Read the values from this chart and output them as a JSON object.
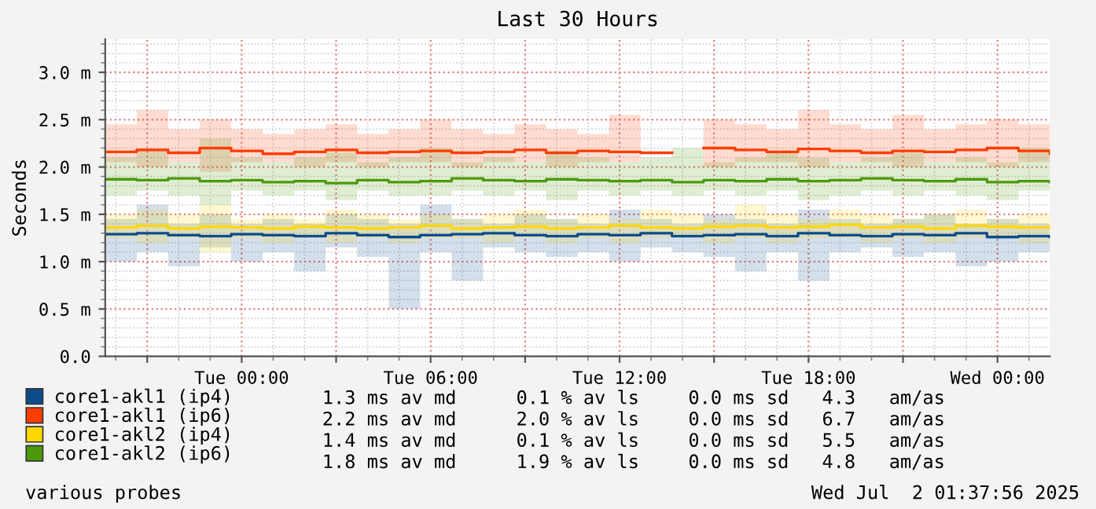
{
  "chart_data": {
    "type": "step",
    "title": "Last 30 Hours",
    "ylabel": "Seconds",
    "x": [
      "2025-06-30T19:40",
      "2025-06-30T20:40",
      "2025-06-30T21:40",
      "2025-06-30T22:40",
      "2025-06-30T23:40",
      "2025-07-01T00:40",
      "2025-07-01T01:40",
      "2025-07-01T02:40",
      "2025-07-01T03:40",
      "2025-07-01T04:40",
      "2025-07-01T05:40",
      "2025-07-01T06:40",
      "2025-07-01T07:40",
      "2025-07-01T08:40",
      "2025-07-01T09:40",
      "2025-07-01T10:40",
      "2025-07-01T11:40",
      "2025-07-01T12:40",
      "2025-07-01T13:40",
      "2025-07-01T14:40",
      "2025-07-01T15:40",
      "2025-07-01T16:40",
      "2025-07-01T17:40",
      "2025-07-01T18:40",
      "2025-07-01T19:40",
      "2025-07-01T20:40",
      "2025-07-01T21:40",
      "2025-07-01T22:40",
      "2025-07-01T23:40",
      "2025-07-02T00:40",
      "2025-07-02T01:40"
    ],
    "series": [
      {
        "name": "core1-akl1 (ip4)",
        "color": "#0c4c8c",
        "values": [
          1.29,
          1.3,
          1.28,
          1.27,
          1.29,
          1.28,
          1.27,
          1.3,
          1.28,
          1.26,
          1.28,
          1.29,
          1.3,
          1.28,
          1.27,
          1.29,
          1.28,
          1.3,
          1.27,
          1.28,
          1.29,
          1.27,
          1.3,
          1.28,
          1.27,
          1.29,
          1.28,
          1.3,
          1.26,
          1.27,
          1.26
        ],
        "lower": [
          1.0,
          1.1,
          0.95,
          1.15,
          1.0,
          1.1,
          0.9,
          1.15,
          1.05,
          0.5,
          1.1,
          0.8,
          1.15,
          1.1,
          1.05,
          1.1,
          1.0,
          1.15,
          1.1,
          1.05,
          0.9,
          1.1,
          0.8,
          1.1,
          1.15,
          1.05,
          1.1,
          0.95,
          1.0,
          1.1,
          1.15
        ],
        "upper": [
          1.45,
          1.6,
          1.4,
          1.5,
          1.4,
          1.45,
          1.4,
          1.5,
          1.45,
          1.4,
          1.6,
          1.45,
          1.4,
          1.5,
          1.45,
          1.4,
          1.55,
          1.45,
          1.4,
          1.5,
          1.45,
          1.4,
          1.55,
          1.45,
          1.4,
          1.45,
          1.5,
          1.4,
          1.45,
          1.4,
          1.45
        ]
      },
      {
        "name": "core1-akl1 (ip6)",
        "color": "#ff3d00",
        "values": [
          2.16,
          2.18,
          2.15,
          2.2,
          2.17,
          2.14,
          2.16,
          2.18,
          2.15,
          2.16,
          2.17,
          2.15,
          2.16,
          2.18,
          2.15,
          2.17,
          2.16,
          2.15,
          null,
          2.2,
          2.18,
          2.16,
          2.19,
          2.17,
          2.15,
          2.17,
          2.16,
          2.18,
          2.2,
          2.17,
          2.14
        ],
        "lower": [
          2.05,
          2.0,
          2.05,
          1.95,
          2.05,
          2.05,
          2.0,
          2.05,
          2.0,
          2.05,
          2.05,
          2.0,
          2.05,
          2.05,
          2.0,
          2.05,
          2.05,
          2.0,
          null,
          2.0,
          2.05,
          2.05,
          2.0,
          2.05,
          2.05,
          2.0,
          2.05,
          2.05,
          2.0,
          2.05,
          2.05
        ],
        "upper": [
          2.45,
          2.6,
          2.4,
          2.5,
          2.4,
          2.35,
          2.4,
          2.45,
          2.35,
          2.4,
          2.5,
          2.4,
          2.35,
          2.45,
          2.4,
          2.35,
          2.55,
          2.4,
          null,
          2.5,
          2.45,
          2.4,
          2.6,
          2.45,
          2.4,
          2.55,
          2.4,
          2.45,
          2.5,
          2.45,
          2.35
        ]
      },
      {
        "name": "core1-akl2 (ip4)",
        "color": "#ffd700",
        "values": [
          1.36,
          1.38,
          1.35,
          1.37,
          1.36,
          1.35,
          1.37,
          1.36,
          1.35,
          1.36,
          1.38,
          1.35,
          1.36,
          1.37,
          1.35,
          1.36,
          1.38,
          1.36,
          1.35,
          1.37,
          1.38,
          1.36,
          1.37,
          1.39,
          1.36,
          1.37,
          1.35,
          1.38,
          1.37,
          1.36,
          1.37
        ],
        "lower": [
          1.25,
          1.2,
          1.25,
          1.1,
          1.25,
          1.2,
          1.25,
          1.2,
          1.25,
          1.2,
          1.25,
          1.25,
          1.2,
          1.25,
          1.2,
          1.25,
          1.2,
          1.25,
          1.25,
          1.2,
          1.25,
          1.2,
          1.25,
          1.25,
          1.2,
          1.25,
          1.2,
          1.25,
          1.25,
          1.2,
          1.25
        ],
        "upper": [
          1.5,
          1.55,
          1.5,
          1.6,
          1.45,
          1.5,
          1.45,
          1.55,
          1.5,
          1.45,
          1.5,
          1.45,
          1.5,
          1.55,
          1.45,
          1.5,
          1.45,
          1.55,
          1.5,
          1.45,
          1.6,
          1.5,
          1.45,
          1.55,
          1.5,
          1.45,
          1.5,
          1.55,
          1.45,
          1.5,
          1.45
        ]
      },
      {
        "name": "core1-akl2 (ip6)",
        "color": "#4c9a0a",
        "values": [
          1.87,
          1.86,
          1.88,
          1.85,
          1.86,
          1.84,
          1.85,
          1.83,
          1.86,
          1.84,
          1.85,
          1.88,
          1.86,
          1.85,
          1.87,
          1.86,
          1.85,
          1.86,
          1.84,
          1.86,
          1.85,
          1.87,
          1.85,
          1.86,
          1.88,
          1.86,
          1.85,
          1.87,
          1.84,
          1.85,
          1.84
        ],
        "lower": [
          1.7,
          1.75,
          1.7,
          1.6,
          1.75,
          1.7,
          1.75,
          1.65,
          1.75,
          1.7,
          1.7,
          1.75,
          1.7,
          1.75,
          1.65,
          1.75,
          1.7,
          1.75,
          1.7,
          1.75,
          1.7,
          1.75,
          1.65,
          1.7,
          1.75,
          1.7,
          1.75,
          1.7,
          1.65,
          1.75,
          1.7
        ],
        "upper": [
          2.1,
          2.2,
          2.05,
          2.3,
          2.1,
          2.05,
          2.1,
          2.15,
          2.05,
          2.1,
          2.2,
          2.05,
          2.1,
          2.05,
          2.15,
          2.1,
          2.05,
          2.1,
          2.2,
          2.05,
          2.1,
          2.15,
          2.1,
          2.05,
          2.1,
          2.15,
          2.05,
          2.1,
          2.05,
          2.2,
          2.05
        ]
      }
    ],
    "xlim": [
      "2025-06-30T19:40",
      "2025-07-02T01:40"
    ],
    "xticks": [
      {
        "value": "2025-06-30T21:00",
        "label": null
      },
      {
        "value": "2025-07-01T00:00",
        "label": "Tue 00:00"
      },
      {
        "value": "2025-07-01T03:00",
        "label": null
      },
      {
        "value": "2025-07-01T06:00",
        "label": "Tue 06:00"
      },
      {
        "value": "2025-07-01T09:00",
        "label": null
      },
      {
        "value": "2025-07-01T12:00",
        "label": "Tue 12:00"
      },
      {
        "value": "2025-07-01T15:00",
        "label": null
      },
      {
        "value": "2025-07-01T18:00",
        "label": "Tue 18:00"
      },
      {
        "value": "2025-07-01T21:00",
        "label": null
      },
      {
        "value": "2025-07-02T00:00",
        "label": "Wed 00:00"
      }
    ],
    "ylim": [
      0,
      3.35
    ],
    "yticks": [
      {
        "value": 0,
        "label": "0.0"
      },
      {
        "value": 0.5,
        "label": "0.5 m"
      },
      {
        "value": 1.0,
        "label": "1.0 m"
      },
      {
        "value": 1.5,
        "label": "1.5 m"
      },
      {
        "value": 2.0,
        "label": "2.0 m"
      },
      {
        "value": 2.5,
        "label": "2.5 m"
      },
      {
        "value": 3.0,
        "label": "3.0 m"
      }
    ],
    "grid": true,
    "legend": "bottom",
    "annotations": [
      "1.3 ms av md",
      "0.1 % av ls",
      "0.0 ms sd",
      "4.3   am/as",
      "2.2 ms av md",
      "2.0 % av ls",
      "0.0 ms sd",
      "6.7   am/as",
      "1.4 ms av md",
      "0.1 % av ls",
      "0.0 ms sd",
      "5.5   am/as",
      "1.8 ms av md",
      "1.9 % av ls",
      "0.0 ms sd",
      "4.8   am/as",
      "various probes",
      "Wed Jul  2 01:37:56 2025"
    ]
  }
}
